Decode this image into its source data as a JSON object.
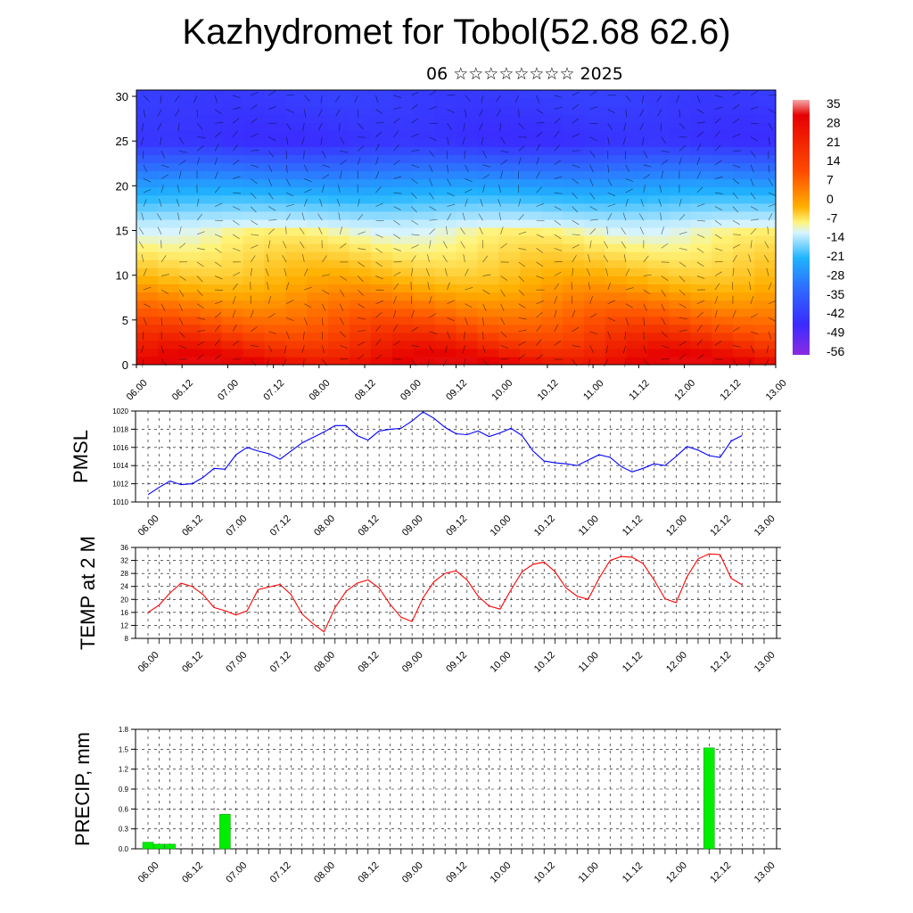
{
  "title": "Kazhydromet for Tobol(52.68 62.6)",
  "subtitle": "06 ☆☆☆☆☆☆☆☆ 2025",
  "time_labels": [
    "06.00",
    "06.12",
    "07.00",
    "07.12",
    "08.00",
    "08.12",
    "09.00",
    "09.12",
    "10.00",
    "10.12",
    "11.00",
    "11.12",
    "12.00",
    "12.12",
    "13.00"
  ],
  "chart_data": [
    {
      "type": "heatmap",
      "title": "",
      "xlabel": "",
      "ylabel": "",
      "x_labels": [
        "06.00",
        "06.12",
        "07.00",
        "07.12",
        "08.00",
        "08.12",
        "09.00",
        "09.12",
        "10.00",
        "10.12",
        "11.00",
        "11.12",
        "12.00",
        "12.12",
        "13.00"
      ],
      "y_ticks": [
        0,
        5,
        10,
        15,
        20,
        25,
        30
      ],
      "ylim": [
        0,
        30.7
      ],
      "z_unit": "temperature",
      "colorbar_levels": [
        35,
        28,
        21,
        14,
        7,
        0,
        -7,
        -14,
        -21,
        -28,
        -35,
        -42,
        -49,
        -56
      ],
      "colorbar_range": [
        -63,
        42
      ],
      "colors": [
        "#8a2be2",
        "#3a2bff",
        "#2e6bff",
        "#1fb4ff",
        "#d8f4ff",
        "#fff47a",
        "#ffb000",
        "#ff5a00",
        "#e60000",
        "#f4aaaa"
      ],
      "profile_heights": [
        0,
        5,
        10,
        15,
        20,
        25,
        30
      ],
      "profile_temps": [
        21,
        10,
        -2,
        -12,
        -32,
        -55,
        -52
      ],
      "overlay": "wind vectors"
    },
    {
      "type": "line",
      "ylabel": "PMSL",
      "ylim": [
        1010,
        1020
      ],
      "y_ticks": [
        1010,
        1012,
        1014,
        1016,
        1018,
        1020
      ],
      "color": "#0000ff",
      "grid": true,
      "x": [
        0,
        3,
        6,
        9,
        12,
        15,
        18,
        21,
        24,
        27,
        30,
        33,
        36,
        39,
        42,
        45,
        48,
        51,
        54,
        57,
        60,
        63,
        66,
        69,
        72,
        75,
        78,
        81,
        84,
        87,
        90,
        93,
        96,
        99,
        102,
        105,
        108,
        111,
        114,
        117,
        120,
        123,
        126,
        129,
        132,
        135,
        138,
        141,
        144,
        147,
        150,
        153,
        156,
        159,
        162
      ],
      "values": [
        1010.8,
        1011.6,
        1012.3,
        1011.9,
        1012.0,
        1012.7,
        1013.7,
        1013.6,
        1015.2,
        1016.0,
        1015.6,
        1015.3,
        1014.7,
        1015.6,
        1016.5,
        1017.1,
        1017.7,
        1018.4,
        1018.4,
        1017.3,
        1016.8,
        1017.8,
        1018.0,
        1018.1,
        1018.9,
        1019.9,
        1019.2,
        1018.2,
        1017.5,
        1017.4,
        1017.8,
        1017.2,
        1017.6,
        1018.1,
        1017.3,
        1015.6,
        1014.5,
        1014.3,
        1014.2,
        1014.0,
        1014.6,
        1015.2,
        1014.9,
        1013.9,
        1013.3,
        1013.7,
        1014.2,
        1014.0,
        1015.0,
        1016.1,
        1015.7,
        1015.1,
        1014.9,
        1016.7,
        1017.3
      ]
    },
    {
      "type": "line",
      "ylabel": "TEMP at 2 M",
      "ylim": [
        8,
        36
      ],
      "y_ticks": [
        8,
        12,
        16,
        20,
        24,
        28,
        32,
        36
      ],
      "color": "#ff0000",
      "grid": true,
      "x": [
        0,
        3,
        6,
        9,
        12,
        15,
        18,
        21,
        24,
        27,
        30,
        33,
        36,
        39,
        42,
        45,
        48,
        51,
        54,
        57,
        60,
        63,
        66,
        69,
        72,
        75,
        78,
        81,
        84,
        87,
        90,
        93,
        96,
        99,
        102,
        105,
        108,
        111,
        114,
        117,
        120,
        123,
        126,
        129,
        132,
        135,
        138,
        141,
        144,
        147,
        150,
        153,
        156,
        159,
        162
      ],
      "values": [
        16.0,
        18.2,
        22.0,
        25.0,
        24.0,
        21.5,
        17.5,
        16.5,
        15.2,
        16.5,
        23.0,
        23.8,
        24.6,
        21.5,
        15.5,
        12.5,
        10.0,
        17.5,
        22.5,
        25.0,
        26.0,
        23.5,
        18.5,
        14.5,
        13.2,
        20.5,
        25.5,
        28.0,
        28.8,
        26.0,
        21.0,
        18.0,
        17.0,
        23.0,
        28.5,
        30.8,
        31.5,
        28.5,
        23.5,
        21.0,
        20.0,
        26.5,
        32.0,
        33.2,
        33.0,
        31.0,
        26.0,
        20.2,
        19.0,
        27.0,
        32.5,
        34.0,
        33.8,
        26.5,
        24.5
      ]
    },
    {
      "type": "bar",
      "ylabel": "PRECIP, mm",
      "ylim": [
        0,
        1.8
      ],
      "y_ticks": [
        "0.0",
        "0.3",
        "0.6",
        "0.9",
        "1.2",
        "1.5",
        "1.8"
      ],
      "color": "#00ee00",
      "grid": true,
      "x": [
        0,
        3,
        6,
        21,
        153
      ],
      "values": [
        0.1,
        0.07,
        0.07,
        0.52,
        1.52
      ]
    }
  ]
}
